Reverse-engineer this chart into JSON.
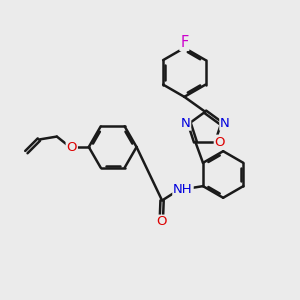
{
  "bg_color": "#ebebeb",
  "bond_color": "#1a1a1a",
  "bond_width": 1.8,
  "atom_colors": {
    "F": "#cc00cc",
    "N": "#0000dd",
    "O": "#dd0000",
    "C": "#1a1a1a"
  },
  "font_size": 9.5,
  "fig_size": [
    3.0,
    3.0
  ],
  "dpi": 100,
  "xlim": [
    0,
    10
  ],
  "ylim": [
    0,
    10
  ]
}
